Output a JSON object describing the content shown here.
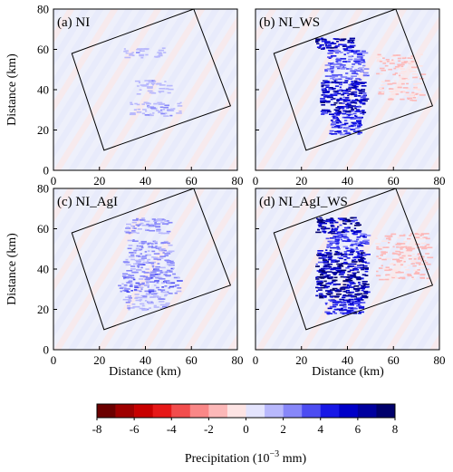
{
  "chart_data": [
    {
      "type": "heatmap",
      "panel_label": "(a) NI",
      "ylabel": "Distance (km)",
      "xlim": [
        0,
        80
      ],
      "ylim": [
        0,
        80
      ],
      "xticks": [
        "0",
        "20",
        "40",
        "60",
        "80"
      ],
      "yticks": [
        "0",
        "20",
        "40",
        "60",
        "80"
      ],
      "box_corners_km": [
        [
          8,
          58
        ],
        [
          61,
          80
        ],
        [
          77,
          32
        ],
        [
          22,
          10
        ]
      ],
      "bands": [
        {
          "xmin": 30,
          "xmax": 48,
          "ymin": 56,
          "ymax": 61,
          "value": 1.8
        },
        {
          "xmin": 35,
          "xmax": 50,
          "ymin": 38,
          "ymax": 45,
          "value": 1.8
        },
        {
          "xmin": 33,
          "xmax": 55,
          "ymin": 27,
          "ymax": 34,
          "value": 2.0
        }
      ]
    },
    {
      "type": "heatmap",
      "panel_label": "(b) NI_WS",
      "xlim": [
        0,
        80
      ],
      "ylim": [
        0,
        80
      ],
      "xticks": [
        "0",
        "20",
        "40",
        "60",
        "80"
      ],
      "box_corners_km": [
        [
          8,
          58
        ],
        [
          61,
          80
        ],
        [
          77,
          32
        ],
        [
          22,
          10
        ]
      ],
      "bands": [
        {
          "xmin": 26,
          "xmax": 42,
          "ymin": 60,
          "ymax": 66,
          "value": 6.5
        },
        {
          "xmin": 31,
          "xmax": 47,
          "ymin": 54,
          "ymax": 60,
          "value": 4.0
        },
        {
          "xmin": 30,
          "xmax": 48,
          "ymin": 45,
          "ymax": 54,
          "value": 3.5
        },
        {
          "xmin": 28,
          "xmax": 47,
          "ymin": 36,
          "ymax": 45,
          "value": 6.0
        },
        {
          "xmin": 28,
          "xmax": 47,
          "ymin": 28,
          "ymax": 36,
          "value": 6.5
        },
        {
          "xmin": 32,
          "xmax": 45,
          "ymin": 18,
          "ymax": 28,
          "value": 5.0
        },
        {
          "xmin": 52,
          "xmax": 72,
          "ymin": 35,
          "ymax": 58,
          "value": -1.2
        }
      ]
    },
    {
      "type": "heatmap",
      "panel_label": "(c) NI_AgI",
      "ylabel": "Distance (km)",
      "xlabel": "Distance (km)",
      "xlim": [
        0,
        80
      ],
      "ylim": [
        0,
        80
      ],
      "xticks": [
        "0",
        "20",
        "40",
        "60",
        "80"
      ],
      "yticks": [
        "0",
        "20",
        "40",
        "60",
        "80"
      ],
      "box_corners_km": [
        [
          8,
          58
        ],
        [
          61,
          80
        ],
        [
          77,
          32
        ],
        [
          22,
          10
        ]
      ],
      "bands": [
        {
          "xmin": 30,
          "xmax": 50,
          "ymin": 58,
          "ymax": 66,
          "value": 2.5
        },
        {
          "xmin": 32,
          "xmax": 50,
          "ymin": 45,
          "ymax": 55,
          "value": 2.5
        },
        {
          "xmin": 30,
          "xmax": 52,
          "ymin": 38,
          "ymax": 45,
          "value": 2.8
        },
        {
          "xmin": 28,
          "xmax": 54,
          "ymin": 28,
          "ymax": 38,
          "value": 3.0
        },
        {
          "xmin": 30,
          "xmax": 50,
          "ymin": 20,
          "ymax": 28,
          "value": 2.0
        }
      ]
    },
    {
      "type": "heatmap",
      "panel_label": "(d) NI_AgI_WS",
      "xlabel": "Distance (km)",
      "xlim": [
        0,
        80
      ],
      "ylim": [
        0,
        80
      ],
      "xticks": [
        "0",
        "20",
        "40",
        "60",
        "80"
      ],
      "box_corners_km": [
        [
          8,
          58
        ],
        [
          61,
          80
        ],
        [
          77,
          32
        ],
        [
          22,
          10
        ]
      ],
      "bands": [
        {
          "xmin": 26,
          "xmax": 44,
          "ymin": 58,
          "ymax": 66,
          "value": 7.0
        },
        {
          "xmin": 30,
          "xmax": 48,
          "ymin": 50,
          "ymax": 58,
          "value": 4.5
        },
        {
          "xmin": 26,
          "xmax": 48,
          "ymin": 40,
          "ymax": 50,
          "value": 6.5
        },
        {
          "xmin": 26,
          "xmax": 48,
          "ymin": 26,
          "ymax": 40,
          "value": 7.5
        },
        {
          "xmin": 30,
          "xmax": 46,
          "ymin": 18,
          "ymax": 26,
          "value": 5.5
        },
        {
          "xmin": 52,
          "xmax": 75,
          "ymin": 35,
          "ymax": 58,
          "value": -1.5
        }
      ]
    }
  ],
  "colorbar": {
    "label_prefix": "Precipitation (10",
    "label_exp": "−3",
    "label_suffix": " mm)",
    "range": [
      -8,
      8
    ],
    "ticks": [
      "-8",
      "-6",
      "-4",
      "-2",
      "0",
      "2",
      "4",
      "6",
      "8"
    ],
    "colors": [
      "#6b0000",
      "#9e0000",
      "#c80000",
      "#e61818",
      "#f24d4d",
      "#f98787",
      "#fcb8b8",
      "#fde4e4",
      "#e4e4fd",
      "#b8b8fc",
      "#8787f9",
      "#4d4df2",
      "#1818e6",
      "#0000c8",
      "#00009e",
      "#00006b"
    ]
  }
}
